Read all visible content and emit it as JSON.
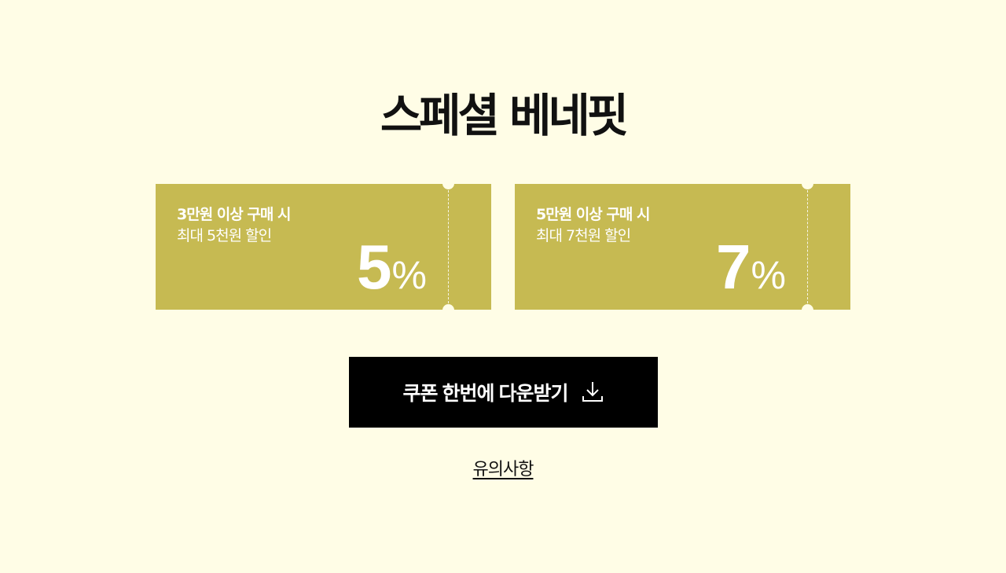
{
  "title": "스페셜 베네핏",
  "coupons": [
    {
      "condition": "3만원 이상 구매 시",
      "benefit": "최대 5천원 할인",
      "percent": "5",
      "percent_sign": "%"
    },
    {
      "condition": "5만원 이상 구매 시",
      "benefit": "최대 7천원 할인",
      "percent": "7",
      "percent_sign": "%"
    }
  ],
  "download_button": {
    "label": "쿠폰 한번에 다운받기",
    "icon": "download-icon"
  },
  "notice_link": "유의사항",
  "colors": {
    "background": "#fffde6",
    "coupon": "#c6ba52",
    "button": "#000000"
  }
}
